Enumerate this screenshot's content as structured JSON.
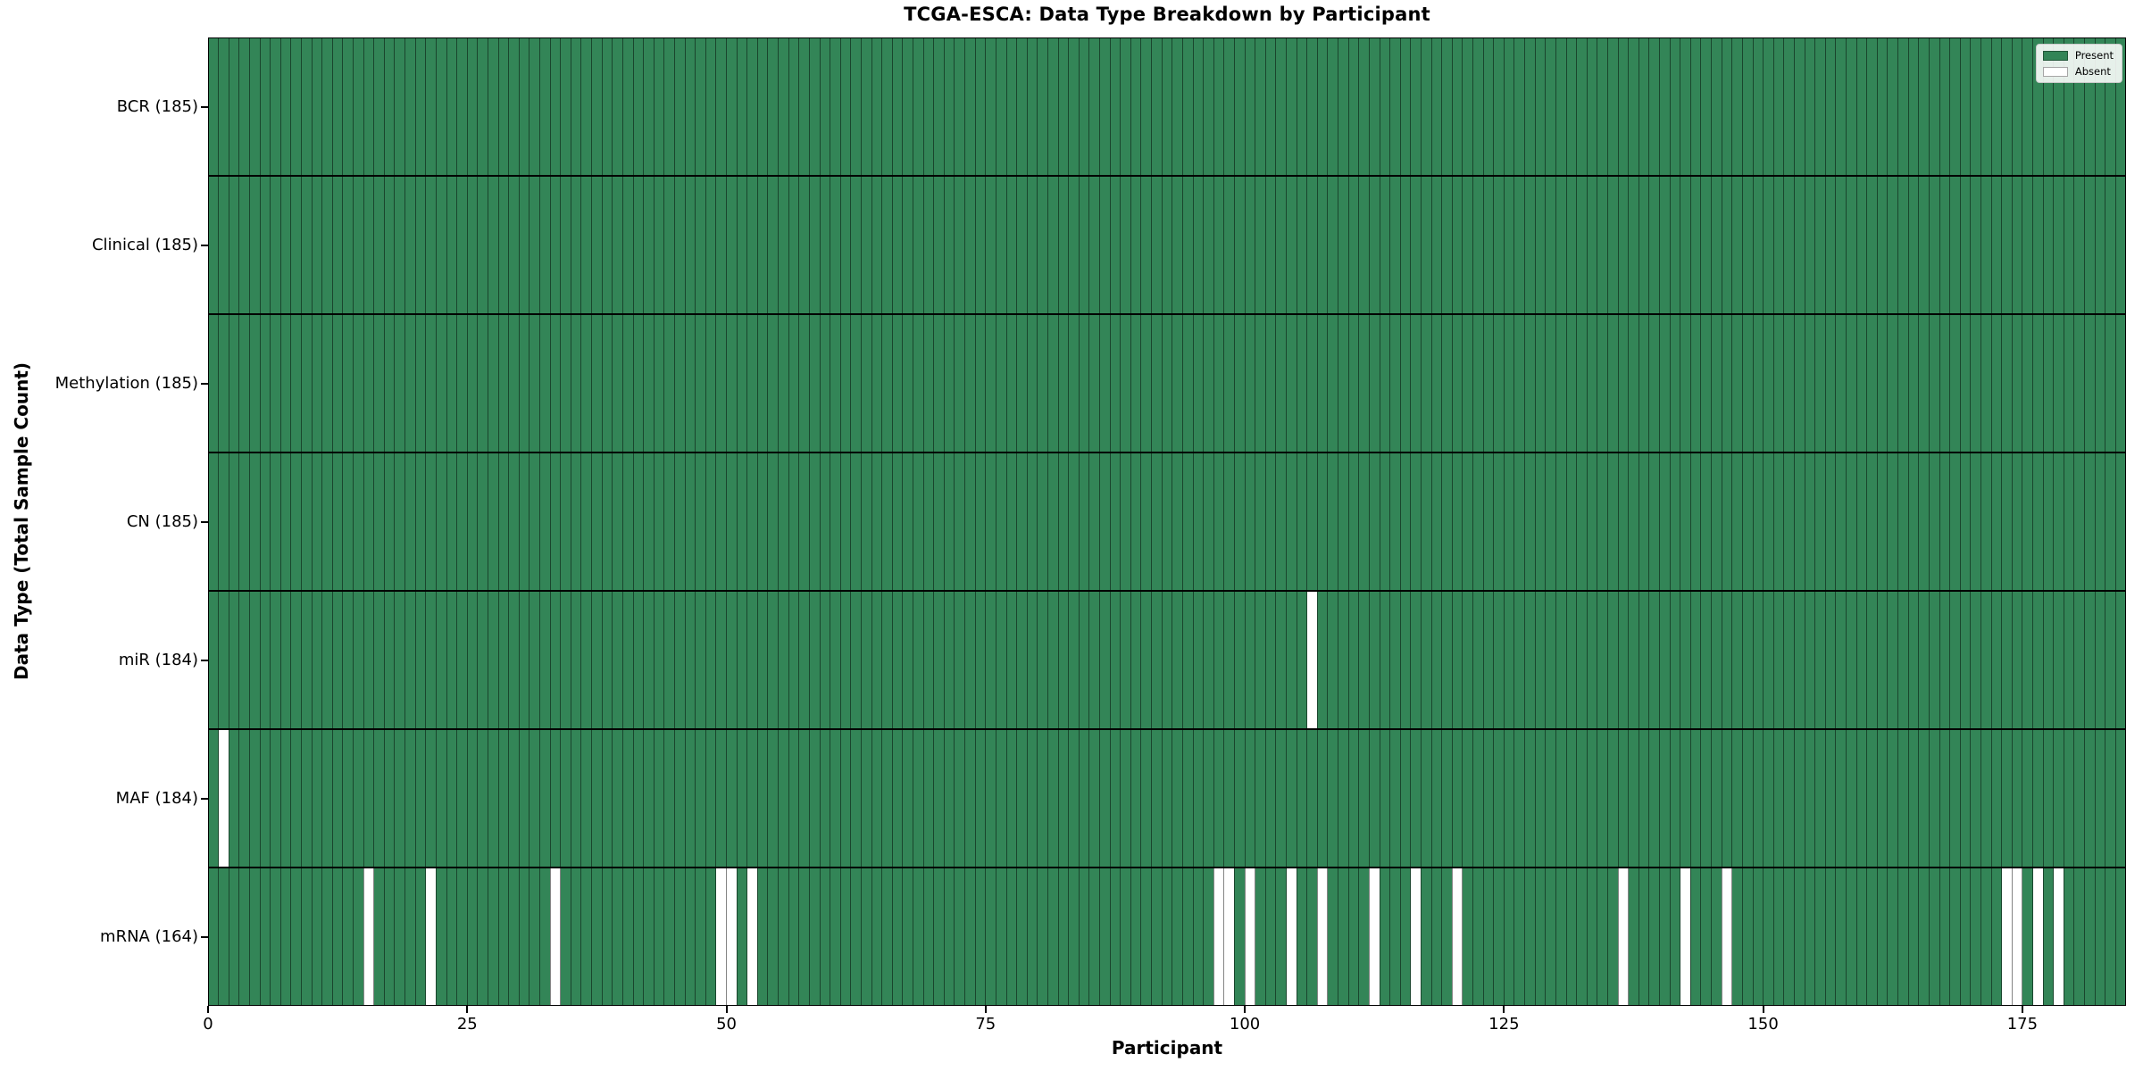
{
  "chart_data": {
    "type": "heatmap",
    "title": "TCGA-ESCA: Data Type Breakdown by Participant",
    "xlabel": "Participant",
    "ylabel": "Data Type (Total Sample Count)",
    "x_ticks": [
      0,
      25,
      50,
      75,
      100,
      125,
      150,
      175
    ],
    "x_range": [
      0,
      185
    ],
    "participants": 185,
    "grid": true,
    "legend": {
      "position": "upper right",
      "entries": [
        {
          "label": "Present",
          "color": "#338557"
        },
        {
          "label": "Absent",
          "color": "#ffffff"
        }
      ]
    },
    "rows": [
      {
        "label": "BCR (185)",
        "data_type": "BCR",
        "total": 185,
        "absent_participants": []
      },
      {
        "label": "Clinical (185)",
        "data_type": "Clinical",
        "total": 185,
        "absent_participants": []
      },
      {
        "label": "Methylation (185)",
        "data_type": "Methylation",
        "total": 185,
        "absent_participants": []
      },
      {
        "label": "CN (185)",
        "data_type": "CN",
        "total": 185,
        "absent_participants": []
      },
      {
        "label": "miR (184)",
        "data_type": "miR",
        "total": 184,
        "absent_participants": [
          106
        ]
      },
      {
        "label": "MAF (184)",
        "data_type": "MAF",
        "total": 184,
        "absent_participants": [
          1
        ]
      },
      {
        "label": "mRNA (164)",
        "data_type": "mRNA",
        "total": 164,
        "absent_participants": [
          15,
          21,
          33,
          49,
          50,
          52,
          97,
          98,
          100,
          104,
          107,
          112,
          116,
          120,
          136,
          142,
          146,
          173,
          174,
          176,
          178
        ]
      }
    ],
    "colors": {
      "present": "#338557",
      "absent": "#ffffff",
      "cell_edge": "rgba(0,0,0,0.48)",
      "row_divider": "#000000",
      "spine": "#000000"
    }
  }
}
